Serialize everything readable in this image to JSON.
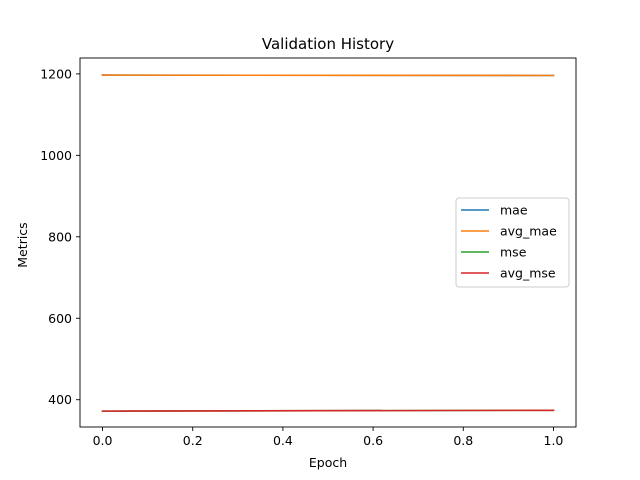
{
  "chart_data": {
    "type": "line",
    "title": "Validation History",
    "xlabel": "Epoch",
    "ylabel": "Metrics",
    "xlim": [
      -0.05,
      1.05
    ],
    "ylim": [
      333,
      1239
    ],
    "xticks": [
      0.0,
      0.2,
      0.4,
      0.6,
      0.8,
      1.0
    ],
    "xtick_labels": [
      "0.0",
      "0.2",
      "0.4",
      "0.6",
      "0.8",
      "1.0"
    ],
    "yticks": [
      400,
      600,
      800,
      1000,
      1200
    ],
    "ytick_labels": [
      "400",
      "600",
      "800",
      "1000",
      "1200"
    ],
    "grid": false,
    "legend_position": "center-right",
    "series": [
      {
        "name": "mae",
        "color": "#1f77b4",
        "x": [
          0,
          1
        ],
        "y": [
          1197,
          1196
        ]
      },
      {
        "name": "avg_mae",
        "color": "#ff7f0e",
        "x": [
          0,
          1
        ],
        "y": [
          1197,
          1196
        ]
      },
      {
        "name": "mse",
        "color": "#2ca02c",
        "x": [
          0,
          1
        ],
        "y": [
          372,
          374
        ]
      },
      {
        "name": "avg_mse",
        "color": "#d62728",
        "x": [
          0,
          1
        ],
        "y": [
          372,
          374
        ]
      }
    ]
  }
}
